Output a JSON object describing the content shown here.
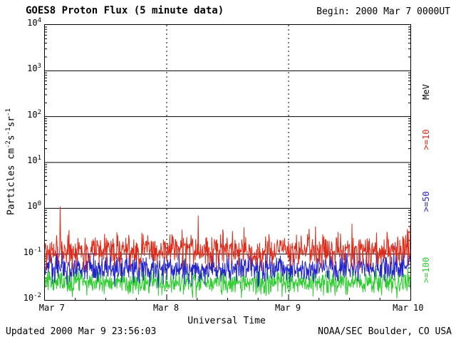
{
  "header": {
    "title": "GOES8 Proton Flux (5 minute data)",
    "begin": "Begin: 2000 Mar 7 0000UT"
  },
  "footer": {
    "updated": "Updated 2000 Mar 9 23:56:03",
    "source": "NOAA/SEC Boulder, CO USA"
  },
  "y_axis": {
    "label_parts": [
      "Particles cm",
      "-2",
      "s",
      "-1",
      "sr",
      "-1"
    ],
    "ticks": [
      {
        "base": "10",
        "exp": "4"
      },
      {
        "base": "10",
        "exp": "3"
      },
      {
        "base": "10",
        "exp": "2"
      },
      {
        "base": "10",
        "exp": "1"
      },
      {
        "base": "10",
        "exp": "0"
      },
      {
        "base": "10",
        "exp": "-1"
      },
      {
        "base": "10",
        "exp": "-2"
      }
    ]
  },
  "x_axis": {
    "title": "Universal Time",
    "ticks": [
      "Mar 7",
      "Mar 8",
      "Mar 9",
      "Mar 10"
    ]
  },
  "right_labels": [
    {
      "text": "MeV",
      "color": "#000000"
    },
    {
      "text": ">=10",
      "color": "#dd2b1a"
    },
    {
      "text": ">=50",
      "color": "#2323cc"
    },
    {
      "text": ">=100",
      "color": "#2ecc2e"
    }
  ],
  "chart_data": {
    "type": "line",
    "title": "GOES8 Proton Flux (5 minute data)",
    "xlabel": "Universal Time",
    "ylabel": "Particles cm^-2 s^-1 sr^-1",
    "x_start": "2000 Mar 7 0000UT",
    "x_end": "2000 Mar 10 0000UT",
    "duration_days": 3,
    "y_scale": "log",
    "ylim": [
      0.01,
      10000
    ],
    "x_tick_labels": [
      "Mar 7",
      "Mar 8",
      "Mar 9",
      "Mar 10"
    ],
    "gridlines": {
      "horizontal_decades": [
        1000,
        100,
        10,
        1,
        0.1
      ],
      "vertical_dashed_at_days": [
        1,
        2
      ]
    },
    "series": [
      {
        "name": ">=10 MeV",
        "color": "#dd2b1a",
        "median_flux": 0.12,
        "sigma_log10": 0.18,
        "spike_prob": 0.015,
        "spike_mult_max": 4.5,
        "seed": 101,
        "points_per_day": 288
      },
      {
        "name": ">=50 MeV",
        "color": "#2323cc",
        "median_flux": 0.05,
        "sigma_log10": 0.15,
        "spike_prob": 0.008,
        "spike_mult_max": 2.5,
        "seed": 202,
        "points_per_day": 288
      },
      {
        "name": ">=100 MeV",
        "color": "#2ecc2e",
        "median_flux": 0.024,
        "sigma_log10": 0.13,
        "spike_prob": 0.004,
        "spike_mult_max": 1.8,
        "seed": 303,
        "points_per_day": 288
      }
    ]
  }
}
